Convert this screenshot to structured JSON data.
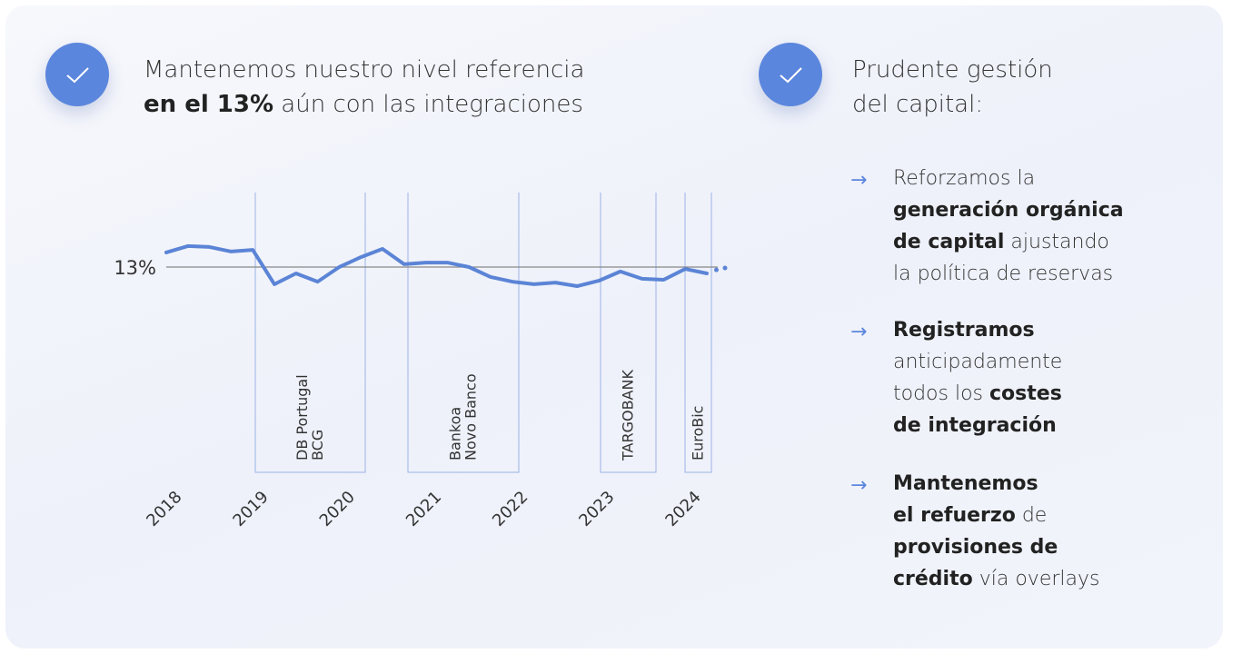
{
  "chart_data": {
    "type": "line",
    "x": [
      2018,
      2018.25,
      2018.5,
      2018.75,
      2019,
      2019.25,
      2019.5,
      2019.75,
      2020,
      2020.25,
      2020.5,
      2020.75,
      2021,
      2021.25,
      2021.5,
      2021.75,
      2022,
      2022.25,
      2022.5,
      2022.75,
      2023,
      2023.25,
      2023.5,
      2023.75,
      2024,
      2024.25,
      2024.36,
      2024.46
    ],
    "series": [
      {
        "color": "#5b84d6",
        "style": "line",
        "values": [
          13.46,
          13.66,
          13.63,
          13.49,
          13.54,
          12.46,
          12.8,
          12.54,
          13.0,
          13.31,
          13.57,
          13.09,
          13.14,
          13.14,
          13.0,
          12.69,
          12.54,
          12.46,
          12.51,
          12.4,
          12.57,
          12.86,
          12.63,
          12.6,
          12.94,
          12.8,
          null,
          null
        ]
      },
      {
        "color": "#5b84d6",
        "style": "dots",
        "values": [
          null,
          null,
          null,
          null,
          null,
          null,
          null,
          null,
          null,
          null,
          null,
          null,
          null,
          null,
          null,
          null,
          null,
          null,
          null,
          null,
          null,
          null,
          null,
          null,
          null,
          null,
          12.91,
          12.97
        ]
      }
    ],
    "xlim": [
      2018,
      2024.7
    ],
    "xticks": [
      2018,
      2019,
      2020,
      2021,
      2022,
      2023,
      2024
    ],
    "ylim": [
      11,
      14
    ],
    "yticks": [
      {
        "value": 13,
        "label": "13%"
      }
    ],
    "annotations": [
      {
        "lines": [
          "DB Portugal",
          "BCG"
        ]
      },
      {
        "lines": [
          "Bankoa",
          "Novo Banco"
        ]
      },
      {
        "lines": [
          "TARGOBANK"
        ]
      },
      {
        "lines": [
          "EuroBic"
        ]
      }
    ]
  },
  "left_heading": [
    [
      {
        "text": "Mantenemos nuestro nivel referencia",
        "bold": false
      }
    ],
    [
      {
        "text": "en el 13%",
        "bold": true
      },
      {
        "text": " aún con las integraciones",
        "bold": false
      }
    ]
  ],
  "right_heading": [
    [
      {
        "text": "Prudente gestión",
        "bold": false
      }
    ],
    [
      {
        "text": "del capital:",
        "bold": false
      }
    ]
  ],
  "bullets": [
    [
      [
        {
          "text": "Reforzamos la",
          "bold": false
        }
      ],
      [
        {
          "text": "generación orgánica",
          "bold": true
        }
      ],
      [
        {
          "text": "de capital",
          "bold": true
        },
        {
          "text": " ajustando",
          "bold": false
        }
      ],
      [
        {
          "text": "la política de reservas",
          "bold": false
        }
      ]
    ],
    [
      [
        {
          "text": "Registramos",
          "bold": true
        }
      ],
      [
        {
          "text": "anticipadamente",
          "bold": false
        }
      ],
      [
        {
          "text": "todos los ",
          "bold": false
        },
        {
          "text": "costes",
          "bold": true
        }
      ],
      [
        {
          "text": "de integración",
          "bold": true
        }
      ]
    ],
    [
      [
        {
          "text": "Mantenemos",
          "bold": true
        }
      ],
      [
        {
          "text": "el refuerzo",
          "bold": true
        },
        {
          "text": " de",
          "bold": false
        }
      ],
      [
        {
          "text": "provisiones de",
          "bold": true
        }
      ],
      [
        {
          "text": "crédito",
          "bold": true
        },
        {
          "text": " vía overlays",
          "bold": false
        }
      ]
    ]
  ]
}
